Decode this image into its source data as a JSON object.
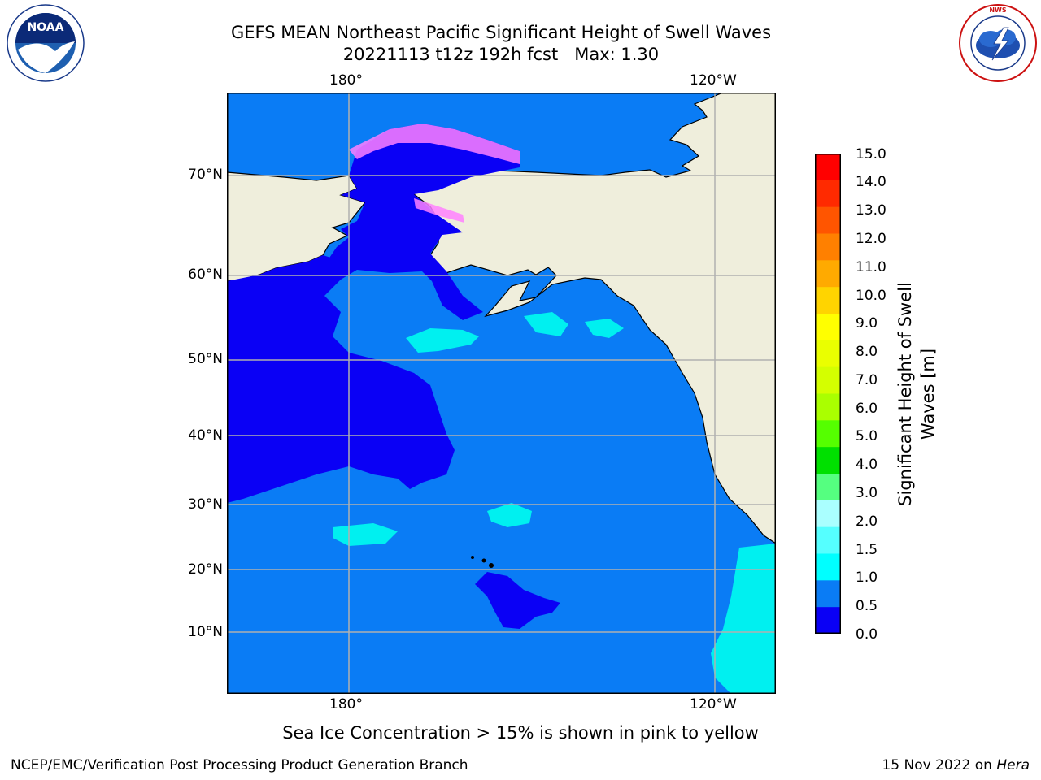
{
  "header": {
    "title_line1": "GEFS MEAN Northeast Pacific Significant Height of Swell Waves",
    "title_line2": "20221113 t12z 192h fcst   Max: 1.30",
    "logo_left_text": "NOAA",
    "logo_right_text": "NATIONAL WEATHER SERVICE"
  },
  "map": {
    "lon_labels_top": [
      "180°",
      "120°W"
    ],
    "lon_labels_bottom": [
      "180°",
      "120°W"
    ],
    "lat_labels": [
      "70°N",
      "60°N",
      "50°N",
      "40°N",
      "30°N",
      "20°N",
      "10°N"
    ],
    "colors": {
      "land": "#efeedc",
      "ocean_0_05": "#0a00f5",
      "ocean_05_10": "#0a7cf5",
      "ocean_10_15": "#00f0f0",
      "ice_pink": "#ff80ff",
      "ice_yellow": "#ffd040",
      "grid": "#b0b0b0"
    }
  },
  "colorbar": {
    "label": "Significant Height of Swell Waves [m]",
    "label_line1": "Significant Height of Swell",
    "label_line2": "Waves [m]",
    "ticks": [
      "15.0",
      "14.0",
      "13.0",
      "12.0",
      "11.0",
      "10.0",
      "9.0",
      "8.0",
      "7.0",
      "6.0",
      "5.0",
      "4.0",
      "3.0",
      "2.0",
      "1.5",
      "1.0",
      "0.5",
      "0.0"
    ],
    "colors_top_to_bottom": [
      "#ff0000",
      "#ff2a00",
      "#ff5500",
      "#ff8000",
      "#ffaa00",
      "#ffd400",
      "#ffff00",
      "#eaff00",
      "#d4ff00",
      "#aaff00",
      "#55ff00",
      "#00e000",
      "#55ff80",
      "#aaffff",
      "#55ffff",
      "#00ffff",
      "#0a7cf5",
      "#0a00f5"
    ]
  },
  "note": "Sea Ice Concentration > 15% is shown in pink to yellow",
  "footer": {
    "left": "NCEP/EMC/Verification Post Processing Product Generation Branch",
    "right_date": "15 Nov 2022 on ",
    "right_host": "Hera"
  }
}
